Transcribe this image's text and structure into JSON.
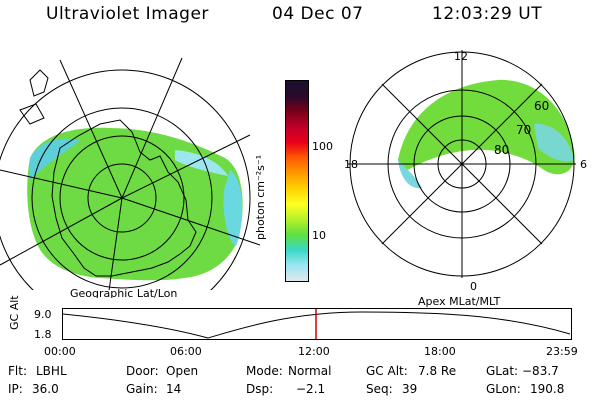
{
  "header": {
    "title": "Ultraviolet Imager",
    "date": "04 Dec 07",
    "time": "12:03:29 UT"
  },
  "colorbar": {
    "unit_label": "photon cm⁻²s⁻¹",
    "ticks": [
      "100",
      "10"
    ],
    "colors": [
      "#1a1030",
      "#2a0a2a",
      "#7a0018",
      "#c0002a",
      "#e8001a",
      "#ff5a00",
      "#ff9a00",
      "#ffd200",
      "#ffff22",
      "#b6f02a",
      "#5ee040",
      "#3ad8c8",
      "#9ee6f0",
      "#dfe8ec"
    ]
  },
  "left_map": {
    "caption": "Geographic Lat/Lon"
  },
  "right_map": {
    "caption": "Apex MLat/MLT",
    "mlt_labels": {
      "top": "12",
      "left": "18",
      "right": "6",
      "bottom": "0"
    },
    "lat_labels": [
      "60",
      "70",
      "80"
    ]
  },
  "altitude_plot": {
    "ylabel": "GC Alt",
    "y_ticks": [
      "9.0",
      "1.8"
    ],
    "x_ticks": [
      "00:00",
      "06:00",
      "12:00",
      "18:00",
      "23:59"
    ],
    "marker_color": "#d00000"
  },
  "status": {
    "filter_label": "Flt:",
    "filter_value": "LBHL",
    "door_label": "Door:",
    "door_value": "Open",
    "mode_label": "Mode:",
    "mode_value": "Normal",
    "gcalt_label": "GC Alt:",
    "gcalt_value": "7.8 Re",
    "glat_label": "GLat:",
    "glat_value": "−83.7",
    "ip_label": "IP:",
    "ip_value": "36.0",
    "gain_label": "Gain:",
    "gain_value": "14",
    "dsp_label": "Dsp:",
    "dsp_value": "−2.1",
    "seq_label": "Seq:",
    "seq_value": "39",
    "glon_label": "GLon:",
    "glon_value": "190.8"
  }
}
